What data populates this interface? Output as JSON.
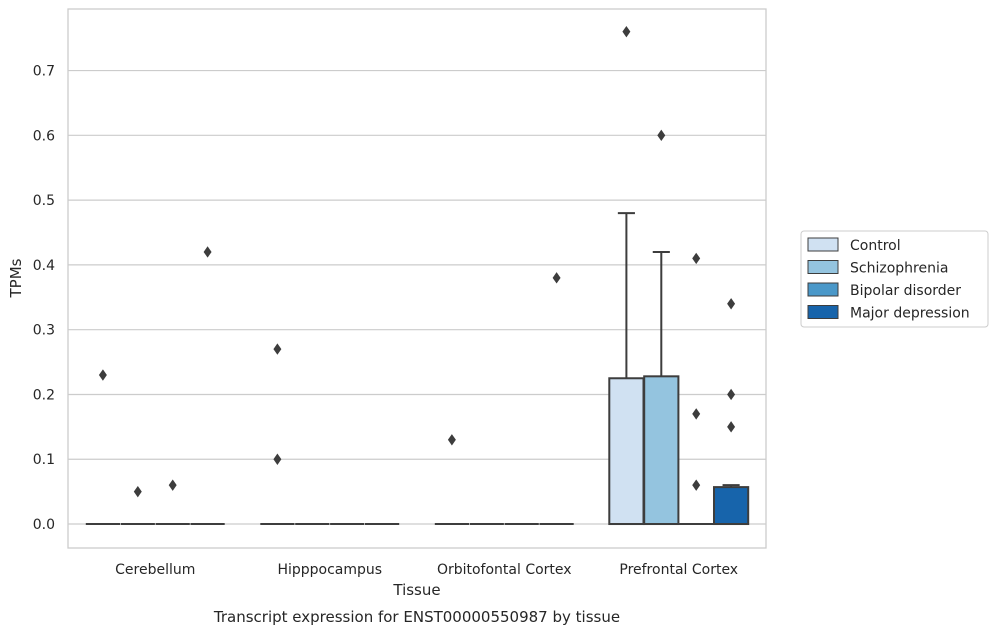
{
  "chart_data": {
    "type": "boxplot",
    "caption": "Transcript expression for ENST00000550987 by tissue",
    "xlabel": "Tissue",
    "ylabel": "TPMs",
    "ylim": [
      -0.037,
      0.795
    ],
    "yticks": [
      0.0,
      0.1,
      0.2,
      0.3,
      0.4,
      0.5,
      0.6,
      0.7
    ],
    "ytick_labels": [
      "0.0",
      "0.1",
      "0.2",
      "0.3",
      "0.4",
      "0.5",
      "0.6",
      "0.7"
    ],
    "categories": [
      "Cerebellum",
      "Hipppocampus",
      "Orbitofontal Cortex",
      "Prefrontal Cortex"
    ],
    "grid": "horizontal",
    "legend_position": "right",
    "series": [
      {
        "name": "Control",
        "color": "#d0e1f2",
        "boxes": [
          {
            "q1": 0,
            "median": 0,
            "q3": 0,
            "whisker_low": 0,
            "whisker_high": 0,
            "outliers": [
              0.23
            ]
          },
          {
            "q1": 0,
            "median": 0,
            "q3": 0,
            "whisker_low": 0,
            "whisker_high": 0,
            "outliers": [
              0.27,
              0.1
            ]
          },
          {
            "q1": 0,
            "median": 0,
            "q3": 0,
            "whisker_low": 0,
            "whisker_high": 0,
            "outliers": [
              0.13
            ]
          },
          {
            "q1": 0,
            "median": 0,
            "q3": 0.225,
            "whisker_low": 0,
            "whisker_high": 0.48,
            "outliers": [
              0.76
            ]
          }
        ]
      },
      {
        "name": "Schizophrenia",
        "color": "#94c4df",
        "boxes": [
          {
            "q1": 0,
            "median": 0,
            "q3": 0,
            "whisker_low": 0,
            "whisker_high": 0,
            "outliers": [
              0.05
            ]
          },
          {
            "q1": 0,
            "median": 0,
            "q3": 0,
            "whisker_low": 0,
            "whisker_high": 0,
            "outliers": []
          },
          {
            "q1": 0,
            "median": 0,
            "q3": 0,
            "whisker_low": 0,
            "whisker_high": 0,
            "outliers": []
          },
          {
            "q1": 0,
            "median": 0,
            "q3": 0.228,
            "whisker_low": 0,
            "whisker_high": 0.42,
            "outliers": [
              0.6
            ]
          }
        ]
      },
      {
        "name": "Bipolar disorder",
        "color": "#4a98c9",
        "boxes": [
          {
            "q1": 0,
            "median": 0,
            "q3": 0,
            "whisker_low": 0,
            "whisker_high": 0,
            "outliers": [
              0.06
            ]
          },
          {
            "q1": 0,
            "median": 0,
            "q3": 0,
            "whisker_low": 0,
            "whisker_high": 0,
            "outliers": []
          },
          {
            "q1": 0,
            "median": 0,
            "q3": 0,
            "whisker_low": 0,
            "whisker_high": 0,
            "outliers": []
          },
          {
            "q1": 0,
            "median": 0,
            "q3": 0,
            "whisker_low": 0,
            "whisker_high": 0,
            "outliers": [
              0.41,
              0.17,
              0.06
            ]
          }
        ]
      },
      {
        "name": "Major depression",
        "color": "#1764ab",
        "boxes": [
          {
            "q1": 0,
            "median": 0,
            "q3": 0,
            "whisker_low": 0,
            "whisker_high": 0,
            "outliers": [
              0.42
            ]
          },
          {
            "q1": 0,
            "median": 0,
            "q3": 0,
            "whisker_low": 0,
            "whisker_high": 0,
            "outliers": []
          },
          {
            "q1": 0,
            "median": 0,
            "q3": 0,
            "whisker_low": 0,
            "whisker_high": 0,
            "outliers": [
              0.38
            ]
          },
          {
            "q1": 0,
            "median": 0,
            "q3": 0.057,
            "whisker_low": 0,
            "whisker_high": 0.06,
            "outliers": [
              0.34,
              0.2,
              0.15
            ]
          }
        ]
      }
    ]
  }
}
